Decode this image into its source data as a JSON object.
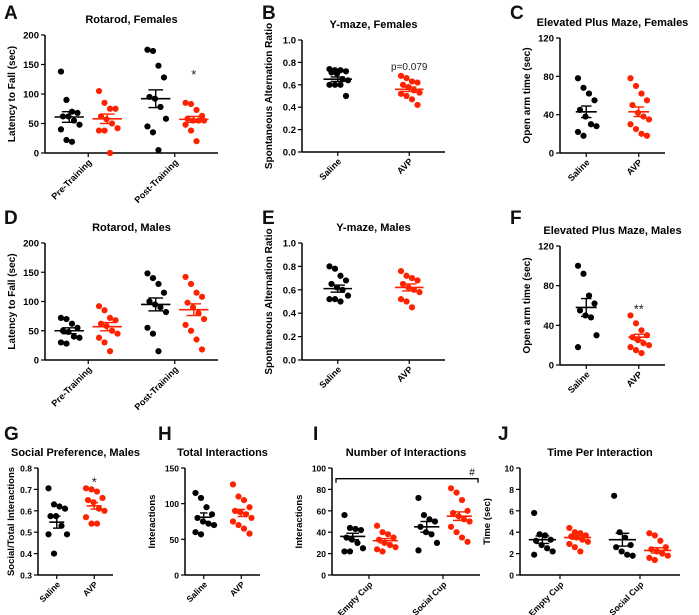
{
  "colors": {
    "saline": "#000000",
    "avp": "#ff2200"
  },
  "chart_data": [
    {
      "id": "A",
      "type": "scatter",
      "title": "Rotarod, Females",
      "ylabel": "Latency to Fall (sec)",
      "ylim": [
        0,
        200
      ],
      "yticks": [
        0,
        50,
        100,
        150,
        200
      ],
      "categories": [
        {
          "label": "Pre-Training",
          "series": [
            {
              "name": "Saline",
              "values": [
                138,
                90,
                70,
                68,
                62,
                62,
                55,
                48,
                40,
                22,
                19
              ],
              "mean": 61,
              "sem": 9
            },
            {
              "name": "AVP",
              "values": [
                105,
                85,
                75,
                75,
                62,
                57,
                50,
                42,
                38,
                38,
                0
              ],
              "mean": 58,
              "sem": 8
            }
          ]
        },
        {
          "label": "Post-Training",
          "series": [
            {
              "name": "Saline",
              "values": [
                175,
                173,
                148,
                128,
                95,
                92,
                78,
                58,
                45,
                35,
                5
              ],
              "mean": 92,
              "sem": 15
            },
            {
              "name": "AVP",
              "values": [
                85,
                83,
                73,
                63,
                58,
                55,
                55,
                55,
                48,
                38,
                20
              ],
              "mean": 57,
              "sem": 5,
              "annotation": "*"
            }
          ]
        }
      ]
    },
    {
      "id": "B",
      "type": "scatter",
      "title": "Y-maze, Females",
      "ylabel": "Spontaneous Alternation Ratio",
      "ylim": [
        0,
        1
      ],
      "yticks": [
        "0.0",
        "0.2",
        "0.4",
        "0.6",
        "0.8",
        "1.0"
      ],
      "categories": [
        {
          "label": "Saline",
          "series": [
            {
              "name": "Saline",
              "values": [
                0.73,
                0.74,
                0.72,
                0.7,
                0.71,
                0.73,
                0.65,
                0.64,
                0.6,
                0.6,
                0.6,
                0.5
              ],
              "mean": 0.65,
              "sem": 0.02
            }
          ]
        },
        {
          "label": "AVP",
          "series": [
            {
              "name": "AVP",
              "values": [
                0.68,
                0.66,
                0.63,
                0.62,
                0.6,
                0.58,
                0.55,
                0.53,
                0.52,
                0.5,
                0.47,
                0.42
              ],
              "mean": 0.56,
              "sem": 0.02,
              "annotation": "p=0.079"
            }
          ]
        }
      ]
    },
    {
      "id": "C",
      "type": "scatter",
      "title": "Elevated Plus Maze, Females",
      "ylabel": "Open arm time (sec)",
      "ylim": [
        0,
        120
      ],
      "yticks": [
        0,
        40,
        80,
        120
      ],
      "categories": [
        {
          "label": "Saline",
          "series": [
            {
              "name": "Saline",
              "values": [
                78,
                68,
                62,
                55,
                45,
                38,
                30,
                28,
                22,
                18
              ],
              "mean": 43,
              "sem": 6
            }
          ]
        },
        {
          "label": "AVP",
          "series": [
            {
              "name": "AVP",
              "values": [
                78,
                70,
                62,
                55,
                50,
                42,
                38,
                35,
                30,
                25,
                20,
                18
              ],
              "mean": 43,
              "sem": 5
            }
          ]
        }
      ]
    },
    {
      "id": "D",
      "type": "scatter",
      "title": "Rotarod, Males",
      "ylabel": "Latency to Fall (sec)",
      "ylim": [
        0,
        200
      ],
      "yticks": [
        0,
        50,
        100,
        150,
        200
      ],
      "categories": [
        {
          "label": "Pre-Training",
          "series": [
            {
              "name": "Saline",
              "values": [
                72,
                70,
                62,
                55,
                50,
                48,
                40,
                38,
                30,
                28
              ],
              "mean": 50,
              "sem": 5
            },
            {
              "name": "AVP",
              "values": [
                92,
                85,
                72,
                68,
                62,
                58,
                50,
                45,
                38,
                30,
                15
              ],
              "mean": 57,
              "sem": 7
            }
          ]
        },
        {
          "label": "Post-Training",
          "series": [
            {
              "name": "Saline",
              "values": [
                148,
                140,
                130,
                115,
                100,
                95,
                90,
                82,
                55,
                45,
                15
              ],
              "mean": 95,
              "sem": 11
            },
            {
              "name": "AVP",
              "values": [
                142,
                130,
                115,
                108,
                98,
                90,
                80,
                70,
                60,
                50,
                35,
                18
              ],
              "mean": 86,
              "sem": 10
            }
          ]
        }
      ]
    },
    {
      "id": "E",
      "type": "scatter",
      "title": "Y-maze, Males",
      "ylabel": "Spontaneous Alternation Ratio",
      "ylim": [
        0,
        1
      ],
      "yticks": [
        "0.0",
        "0.2",
        "0.4",
        "0.6",
        "0.8",
        "1.0"
      ],
      "categories": [
        {
          "label": "Saline",
          "series": [
            {
              "name": "Saline",
              "values": [
                0.8,
                0.78,
                0.72,
                0.68,
                0.65,
                0.62,
                0.6,
                0.55,
                0.52,
                0.52,
                0.5
              ],
              "mean": 0.61,
              "sem": 0.03
            }
          ]
        },
        {
          "label": "AVP",
          "series": [
            {
              "name": "AVP",
              "values": [
                0.76,
                0.72,
                0.7,
                0.68,
                0.65,
                0.62,
                0.6,
                0.58,
                0.52,
                0.5,
                0.45
              ],
              "mean": 0.62,
              "sem": 0.03
            }
          ]
        }
      ]
    },
    {
      "id": "F",
      "type": "scatter",
      "title": "Elevated Plus Maze, Males",
      "ylabel": "Open arm time (sec)",
      "ylim": [
        0,
        120
      ],
      "yticks": [
        0,
        40,
        80,
        120
      ],
      "categories": [
        {
          "label": "Saline",
          "series": [
            {
              "name": "Saline",
              "values": [
                100,
                92,
                70,
                62,
                55,
                50,
                48,
                30,
                18
              ],
              "mean": 58,
              "sem": 9
            }
          ]
        },
        {
          "label": "AVP",
          "series": [
            {
              "name": "AVP",
              "values": [
                50,
                42,
                35,
                30,
                28,
                25,
                22,
                20,
                18,
                15,
                12
              ],
              "mean": 28,
              "sem": 3,
              "annotation": "**"
            }
          ]
        }
      ]
    },
    {
      "id": "G",
      "type": "scatter",
      "title": "Social Preference, Males",
      "ylabel": "Social/Total Interactions",
      "ylim": [
        0.3,
        0.8
      ],
      "yticks": [
        "0.3",
        "0.4",
        "0.5",
        "0.6",
        "0.7",
        "0.8"
      ],
      "categories": [
        {
          "label": "Saline",
          "series": [
            {
              "name": "Saline",
              "values": [
                0.705,
                0.63,
                0.62,
                0.61,
                0.575,
                0.575,
                0.53,
                0.49,
                0.49,
                0.4
              ],
              "mean": 0.547,
              "sem": 0.028
            }
          ]
        },
        {
          "label": "AVP",
          "series": [
            {
              "name": "AVP",
              "values": [
                0.705,
                0.7,
                0.69,
                0.66,
                0.65,
                0.64,
                0.61,
                0.6,
                0.57,
                0.54,
                0.54
              ],
              "mean": 0.623,
              "sem": 0.015,
              "annotation": "*"
            }
          ]
        }
      ]
    },
    {
      "id": "H",
      "type": "scatter",
      "title": "Total Interactions",
      "ylabel": "Interactions",
      "ylim": [
        0,
        150
      ],
      "yticks": [
        0,
        50,
        100,
        150
      ],
      "categories": [
        {
          "label": "Saline",
          "series": [
            {
              "name": "Saline",
              "values": [
                115,
                108,
                95,
                85,
                80,
                75,
                72,
                70,
                60,
                57
              ],
              "mean": 81,
              "sem": 6
            }
          ]
        },
        {
          "label": "AVP",
          "series": [
            {
              "name": "AVP",
              "values": [
                127,
                110,
                105,
                95,
                90,
                88,
                85,
                80,
                75,
                70,
                65,
                58
              ],
              "mean": 87,
              "sem": 5
            }
          ]
        }
      ]
    },
    {
      "id": "I",
      "type": "scatter",
      "title": "Number of Interactions",
      "ylabel": "Interactions",
      "ylim": [
        0,
        100
      ],
      "yticks": [
        0,
        20,
        40,
        60,
        80,
        100
      ],
      "bracket": {
        "value": 90,
        "label": "#"
      },
      "categories": [
        {
          "label": "Empty Cup",
          "series": [
            {
              "name": "Saline",
              "values": [
                56,
                44,
                43,
                42,
                35,
                33,
                30,
                25,
                22,
                22
              ],
              "mean": 36,
              "sem": 3
            },
            {
              "name": "AVP",
              "values": [
                46,
                40,
                38,
                35,
                33,
                30,
                28,
                26,
                24,
                22
              ],
              "mean": 32,
              "sem": 2
            }
          ]
        },
        {
          "label": "Social Cup",
          "series": [
            {
              "name": "Saline",
              "values": [
                72,
                56,
                52,
                50,
                45,
                40,
                38,
                30,
                23
              ],
              "mean": 45,
              "sem": 5
            },
            {
              "name": "AVP",
              "values": [
                81,
                77,
                70,
                60,
                58,
                55,
                52,
                50,
                45,
                40,
                35,
                31
              ],
              "mean": 55,
              "sem": 4
            }
          ]
        }
      ]
    },
    {
      "id": "J",
      "type": "scatter",
      "title": "Time Per Interaction",
      "ylabel": "Time (sec)",
      "ylim": [
        0,
        10
      ],
      "yticks": [
        0,
        2,
        4,
        6,
        8,
        10
      ],
      "categories": [
        {
          "label": "Empty Cup",
          "series": [
            {
              "name": "Saline",
              "values": [
                5.8,
                3.8,
                3.7,
                3.3,
                3.2,
                2.8,
                2.5,
                2.2,
                1.9
              ],
              "mean": 3.3,
              "sem": 0.35
            },
            {
              "name": "AVP",
              "values": [
                4.4,
                4.0,
                3.9,
                3.7,
                3.6,
                3.5,
                3.3,
                3.1,
                2.9,
                2.6,
                2.2
              ],
              "mean": 3.5,
              "sem": 0.15
            }
          ]
        },
        {
          "label": "Social Cup",
          "series": [
            {
              "name": "Saline",
              "values": [
                7.4,
                4.0,
                3.5,
                2.8,
                2.6,
                2.2,
                1.9,
                1.8
              ],
              "mean": 3.3,
              "sem": 0.6
            },
            {
              "name": "AVP",
              "values": [
                3.9,
                3.7,
                3.2,
                2.6,
                2.4,
                2.2,
                2.0,
                1.8,
                1.6,
                1.4
              ],
              "mean": 2.3,
              "sem": 0.25
            }
          ]
        }
      ]
    }
  ]
}
